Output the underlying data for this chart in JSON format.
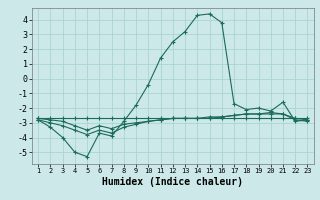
{
  "xlabel": "Humidex (Indice chaleur)",
  "x_values": [
    1,
    2,
    3,
    4,
    5,
    6,
    7,
    8,
    9,
    10,
    11,
    12,
    13,
    14,
    15,
    16,
    17,
    18,
    19,
    20,
    21,
    22,
    23
  ],
  "line1": [
    -2.7,
    -2.7,
    -2.7,
    -2.7,
    -2.7,
    -2.7,
    -2.7,
    -2.7,
    -2.7,
    -2.7,
    -2.7,
    -2.7,
    -2.7,
    -2.7,
    -2.7,
    -2.7,
    -2.7,
    -2.7,
    -2.7,
    -2.7,
    -2.7,
    -2.7,
    -2.7
  ],
  "line2": [
    -2.8,
    -3.3,
    -4.0,
    -5.0,
    -5.3,
    -3.7,
    -3.9,
    -2.9,
    -1.8,
    -0.4,
    1.4,
    2.5,
    3.2,
    4.3,
    4.4,
    3.8,
    -1.7,
    -2.1,
    -2.0,
    -2.2,
    -1.6,
    -2.9,
    -2.8
  ],
  "line3": [
    -2.7,
    -2.8,
    -2.9,
    -3.2,
    -3.5,
    -3.2,
    -3.4,
    -3.1,
    -3.0,
    -2.9,
    -2.8,
    -2.7,
    -2.7,
    -2.7,
    -2.7,
    -2.6,
    -2.5,
    -2.4,
    -2.4,
    -2.4,
    -2.4,
    -2.7,
    -2.8
  ],
  "line4": [
    -2.8,
    -3.0,
    -3.2,
    -3.5,
    -3.8,
    -3.5,
    -3.7,
    -3.3,
    -3.1,
    -2.9,
    -2.8,
    -2.7,
    -2.7,
    -2.7,
    -2.6,
    -2.6,
    -2.5,
    -2.4,
    -2.4,
    -2.3,
    -2.4,
    -2.8,
    -2.9
  ],
  "line_color": "#1a6b5a",
  "bg_color": "#cce8e8",
  "grid_color": "#aad4d4",
  "ylim": [
    -5.8,
    4.8
  ],
  "xlim": [
    0.5,
    23.5
  ],
  "yticks": [
    -5,
    -4,
    -3,
    -2,
    -1,
    0,
    1,
    2,
    3,
    4
  ],
  "xticks": [
    1,
    2,
    3,
    4,
    5,
    6,
    7,
    8,
    9,
    10,
    11,
    12,
    13,
    14,
    15,
    16,
    17,
    18,
    19,
    20,
    21,
    22,
    23
  ]
}
